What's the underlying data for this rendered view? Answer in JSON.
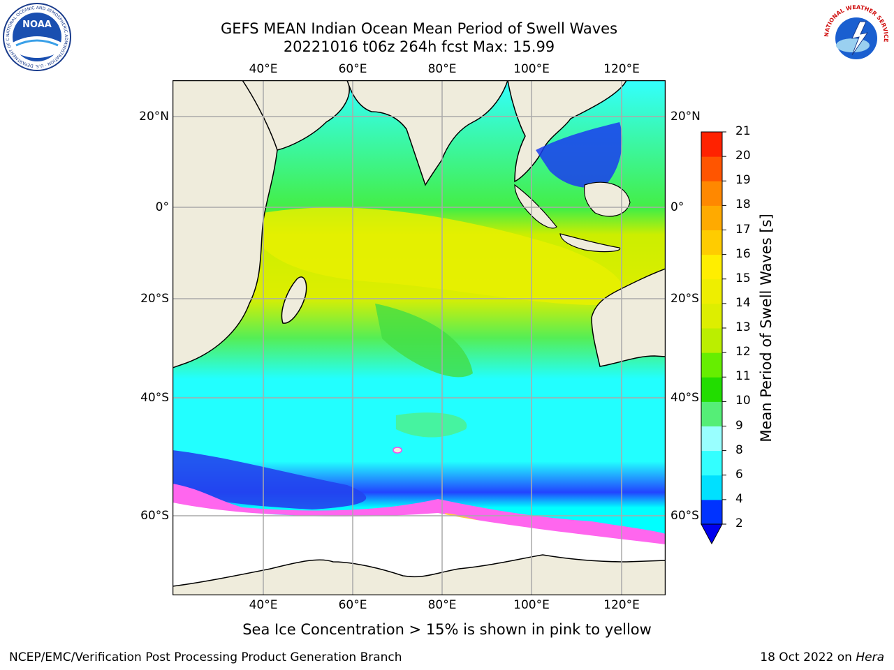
{
  "title": {
    "line1": "GEFS MEAN Indian Ocean Mean Period of Swell Waves",
    "line2": "20221016 t06z 264h fcst   Max: 15.99"
  },
  "axes": {
    "lon_ticks": [
      "40°E",
      "60°E",
      "80°E",
      "100°E",
      "120°E"
    ],
    "lat_ticks": [
      "20°N",
      "0°",
      "20°S",
      "40°S",
      "60°S"
    ]
  },
  "colorbar": {
    "label": "Mean Period of Swell Waves [s]",
    "ticks": [
      "2",
      "4",
      "6",
      "8",
      "9",
      "10",
      "11",
      "12",
      "13",
      "14",
      "15",
      "16",
      "17",
      "18",
      "19",
      "20",
      "21"
    ],
    "colors": [
      "#0033ff",
      "#00e0ff",
      "#33ffff",
      "#99ffff",
      "#55ee77",
      "#22dd00",
      "#66ee00",
      "#bbee00",
      "#ddee00",
      "#eeee00",
      "#ffee00",
      "#ffcc00",
      "#ffaa00",
      "#ff8800",
      "#ff5500",
      "#ff2200"
    ],
    "under_color": "#0000ee"
  },
  "caption": "Sea Ice Concentration > 15% is shown in pink to yellow",
  "footer": {
    "left": "NCEP/EMC/Verification Post Processing Product Generation Branch",
    "right_prefix": "18 Oct 2022 on ",
    "right_host": "Hera"
  },
  "logos": {
    "left": {
      "text": "NOAA",
      "ring_text": "NATIONAL OCEANIC AND ATMOSPHERIC ADMINISTRATION · U.S. DEPARTMENT OF COMMERCE"
    },
    "right": {
      "ring_text": "NATIONAL WEATHER SERVICE"
    }
  },
  "map": {
    "land_color": "#efecdc",
    "ice_color": "#ffffff",
    "grid_color": "#aaaaaa"
  }
}
